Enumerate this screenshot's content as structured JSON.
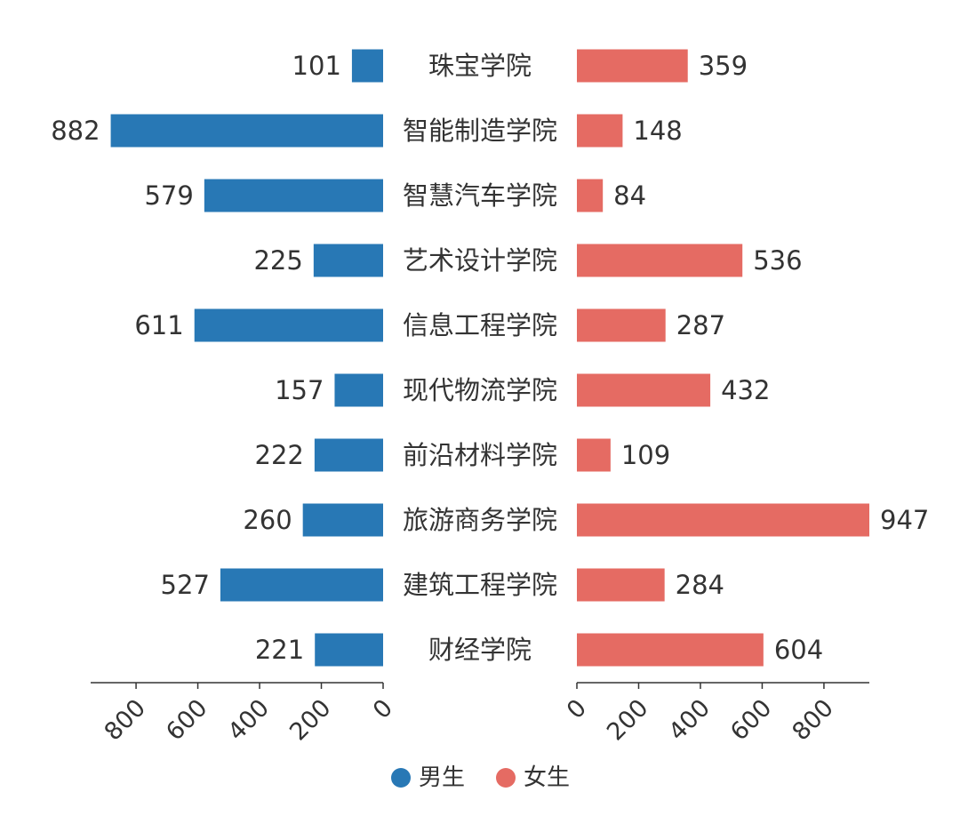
{
  "chart_data": {
    "type": "bar",
    "orientation": "horizontal-butterfly",
    "categories": [
      "珠宝学院",
      "智能制造学院",
      "智慧汽车学院",
      "艺术设计学院",
      "信息工程学院",
      "现代物流学院",
      "前沿材料学院",
      "旅游商务学院",
      "建筑工程学院",
      "财经学院"
    ],
    "series": [
      {
        "name": "男生",
        "color": "#2878b5",
        "side": "left",
        "values": [
          101,
          882,
          579,
          225,
          611,
          157,
          222,
          260,
          527,
          221
        ]
      },
      {
        "name": "女生",
        "color": "#e56b63",
        "side": "right",
        "values": [
          359,
          148,
          84,
          536,
          287,
          432,
          109,
          947,
          284,
          604
        ]
      }
    ],
    "xlim": [
      0,
      947
    ],
    "ticks": [
      0,
      200,
      400,
      600,
      800
    ],
    "legend_position": "bottom-center",
    "grid": false
  }
}
